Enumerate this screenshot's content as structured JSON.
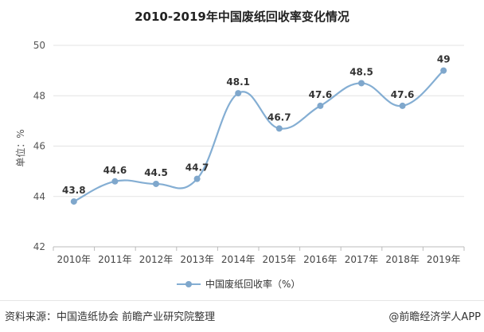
{
  "chart_data": {
    "type": "line",
    "title": "2010-2019年中国废纸回收率变化情况",
    "ylabel": "单位：%",
    "xlabel": "",
    "categories": [
      "2010年",
      "2011年",
      "2012年",
      "2013年",
      "2014年",
      "2015年",
      "2016年",
      "2017年",
      "2018年",
      "2019年"
    ],
    "series": [
      {
        "name": "中国废纸回收率（%）",
        "values": [
          43.8,
          44.6,
          44.5,
          44.7,
          48.1,
          46.7,
          47.6,
          48.5,
          47.6,
          49
        ],
        "labels": [
          "43.8",
          "44.6",
          "44.5",
          "44.7",
          "48.1",
          "46.7",
          "47.6",
          "48.5",
          "47.6",
          "49"
        ]
      }
    ],
    "ylim": [
      42,
      50
    ],
    "yticks": [
      "42",
      "44",
      "46",
      "48",
      "50"
    ],
    "grid": true,
    "legend_position": "bottom",
    "line_color": "#84aed3",
    "marker_color": "#7fa7cc"
  },
  "footer": {
    "source": "资料来源：中国造纸协会 前瞻产业研究院整理",
    "credit": "@前瞻经济学人APP"
  }
}
